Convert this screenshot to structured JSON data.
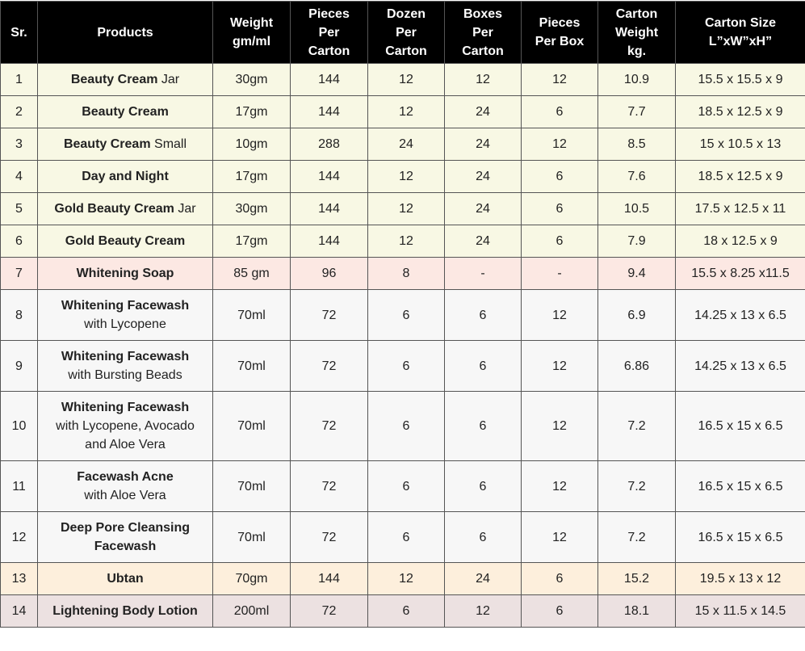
{
  "table": {
    "headers": [
      [
        "Sr."
      ],
      [
        "Products"
      ],
      [
        "Weight",
        "gm/ml"
      ],
      [
        "Pieces",
        "Per",
        "Carton"
      ],
      [
        "Dozen",
        "Per",
        "Carton"
      ],
      [
        "Boxes",
        "Per",
        "Carton"
      ],
      [
        "Pieces",
        "Per Box"
      ],
      [
        "Carton",
        "Weight",
        "kg."
      ],
      [
        "Carton Size",
        "L”xW”xH”"
      ]
    ],
    "rows": [
      {
        "sr": "1",
        "name": "Beauty Cream",
        "suffix": "Jar",
        "desc": [],
        "weight": "30gm",
        "pieces_per_carton": "144",
        "dozen_per_carton": "12",
        "boxes_per_carton": "12",
        "pieces_per_box": "12",
        "carton_weight": "10.9",
        "carton_size": "15.5 x 15.5 x 9",
        "color": "yellow"
      },
      {
        "sr": "2",
        "name": "Beauty Cream",
        "suffix": "",
        "desc": [],
        "weight": "17gm",
        "pieces_per_carton": "144",
        "dozen_per_carton": "12",
        "boxes_per_carton": "24",
        "pieces_per_box": "6",
        "carton_weight": "7.7",
        "carton_size": "18.5 x 12.5 x 9",
        "color": "yellow"
      },
      {
        "sr": "3",
        "name": "Beauty Cream",
        "suffix": "Small",
        "desc": [],
        "weight": "10gm",
        "pieces_per_carton": "288",
        "dozen_per_carton": "24",
        "boxes_per_carton": "24",
        "pieces_per_box": "12",
        "carton_weight": "8.5",
        "carton_size": "15 x 10.5 x 13",
        "color": "yellow"
      },
      {
        "sr": "4",
        "name": "Day and Night",
        "suffix": "",
        "desc": [],
        "weight": "17gm",
        "pieces_per_carton": "144",
        "dozen_per_carton": "12",
        "boxes_per_carton": "24",
        "pieces_per_box": "6",
        "carton_weight": "7.6",
        "carton_size": "18.5 x 12.5 x 9",
        "color": "yellow"
      },
      {
        "sr": "5",
        "name": "Gold Beauty Cream",
        "suffix": "Jar",
        "desc": [],
        "weight": "30gm",
        "pieces_per_carton": "144",
        "dozen_per_carton": "12",
        "boxes_per_carton": "24",
        "pieces_per_box": "6",
        "carton_weight": "10.5",
        "carton_size": "17.5 x 12.5 x 11",
        "color": "yellow"
      },
      {
        "sr": "6",
        "name": "Gold Beauty Cream",
        "suffix": "",
        "desc": [],
        "weight": "17gm",
        "pieces_per_carton": "144",
        "dozen_per_carton": "12",
        "boxes_per_carton": "24",
        "pieces_per_box": "6",
        "carton_weight": "7.9",
        "carton_size": "18 x 12.5 x 9",
        "color": "yellow"
      },
      {
        "sr": "7",
        "name": "Whitening Soap",
        "suffix": "",
        "desc": [],
        "weight": "85 gm",
        "pieces_per_carton": "96",
        "dozen_per_carton": "8",
        "boxes_per_carton": "-",
        "pieces_per_box": "-",
        "carton_weight": "9.4",
        "carton_size": "15.5 x 8.25 x11.5",
        "color": "pink"
      },
      {
        "sr": "8",
        "name": "Whitening Facewash",
        "suffix": "",
        "desc": [
          "with Lycopene"
        ],
        "weight": "70ml",
        "pieces_per_carton": "72",
        "dozen_per_carton": "6",
        "boxes_per_carton": "6",
        "pieces_per_box": "12",
        "carton_weight": "6.9",
        "carton_size": "14.25 x 13 x 6.5",
        "color": "gray"
      },
      {
        "sr": "9",
        "name": "Whitening Facewash",
        "suffix": "",
        "desc": [
          "with Bursting Beads"
        ],
        "weight": "70ml",
        "pieces_per_carton": "72",
        "dozen_per_carton": "6",
        "boxes_per_carton": "6",
        "pieces_per_box": "12",
        "carton_weight": "6.86",
        "carton_size": "14.25 x 13 x 6.5",
        "color": "gray"
      },
      {
        "sr": "10",
        "name": "Whitening Facewash",
        "suffix": "",
        "desc": [
          "with Lycopene, Avocado",
          "and Aloe Vera"
        ],
        "weight": "70ml",
        "pieces_per_carton": "72",
        "dozen_per_carton": "6",
        "boxes_per_carton": "6",
        "pieces_per_box": "12",
        "carton_weight": "7.2",
        "carton_size": "16.5 x 15 x 6.5",
        "color": "gray"
      },
      {
        "sr": "11",
        "name": "Facewash Acne",
        "suffix": "",
        "desc": [
          "with Aloe Vera"
        ],
        "weight": "70ml",
        "pieces_per_carton": "72",
        "dozen_per_carton": "6",
        "boxes_per_carton": "6",
        "pieces_per_box": "12",
        "carton_weight": "7.2",
        "carton_size": "16.5 x 15 x 6.5",
        "color": "gray"
      },
      {
        "sr": "12",
        "name": "Deep Pore Cleansing Facewash",
        "suffix": "",
        "desc": [],
        "weight": "70ml",
        "pieces_per_carton": "72",
        "dozen_per_carton": "6",
        "boxes_per_carton": "6",
        "pieces_per_box": "12",
        "carton_weight": "7.2",
        "carton_size": "16.5 x 15 x 6.5",
        "color": "gray"
      },
      {
        "sr": "13",
        "name": "Ubtan",
        "suffix": "",
        "desc": [],
        "weight": "70gm",
        "pieces_per_carton": "144",
        "dozen_per_carton": "12",
        "boxes_per_carton": "24",
        "pieces_per_box": "6",
        "carton_weight": "15.2",
        "carton_size": "19.5 x 13 x 12",
        "color": "peach"
      },
      {
        "sr": "14",
        "name": "Lightening Body Lotion",
        "suffix": "",
        "desc": [],
        "weight": "200ml",
        "pieces_per_carton": "72",
        "dozen_per_carton": "6",
        "boxes_per_carton": "12",
        "pieces_per_box": "6",
        "carton_weight": "18.1",
        "carton_size": "15 x 11.5 x 14.5",
        "color": "mauve"
      }
    ]
  }
}
